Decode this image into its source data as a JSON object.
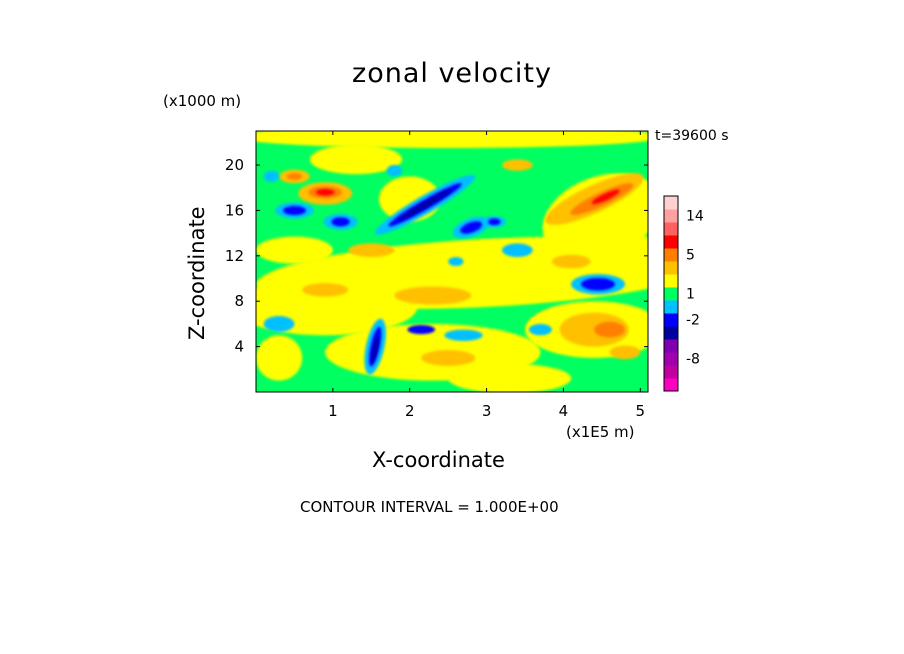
{
  "chart_data": {
    "type": "heatmap",
    "title": "zonal velocity",
    "time_label": "t=39600 s",
    "xlabel": "X-coordinate",
    "x_unit": "(x1E5 m)",
    "ylabel": "Z-coordinate",
    "y_unit": "(x1000 m)",
    "footer": "CONTOUR INTERVAL = 1.000E+00",
    "xlim": [
      0,
      5.1
    ],
    "ylim": [
      0,
      23
    ],
    "x_ticks": [
      "1",
      "2",
      "3",
      "4",
      "5"
    ],
    "y_ticks": [
      "4",
      "8",
      "12",
      "16",
      "20"
    ],
    "colorbar": {
      "tick_labels": [
        "14",
        "5",
        "1",
        "-2",
        "-8"
      ],
      "colors": [
        "#ff00c0",
        "#c000a0",
        "#a000b0",
        "#8000b0",
        "#0000a0",
        "#0000ff",
        "#00c0ff",
        "#00ff60",
        "#ffff00",
        "#ffc000",
        "#ff8000",
        "#ff0000",
        "#ff6060",
        "#ffa0a0",
        "#ffd0d0"
      ]
    },
    "features": [
      {
        "kind": "positive",
        "x": 0.9,
        "z": 17.5,
        "value": 6
      },
      {
        "kind": "negative",
        "x": 2.2,
        "z": 16.5,
        "value": -7
      },
      {
        "kind": "negative",
        "x": 0.5,
        "z": 16.0,
        "value": -6
      },
      {
        "kind": "negative",
        "x": 1.1,
        "z": 15.0,
        "value": -5
      },
      {
        "kind": "negative",
        "x": 2.8,
        "z": 14.5,
        "value": -5
      },
      {
        "kind": "negative",
        "x": 4.45,
        "z": 9.5,
        "value": -6
      },
      {
        "kind": "negative",
        "x": 1.55,
        "z": 4.0,
        "value": -6
      },
      {
        "kind": "positive",
        "x": 4.6,
        "z": 17.0,
        "value": 6
      },
      {
        "kind": "positive",
        "x": 4.6,
        "z": 5.5,
        "value": 5
      },
      {
        "kind": "positive",
        "x": 0.5,
        "z": 19.0,
        "value": 4
      }
    ]
  }
}
